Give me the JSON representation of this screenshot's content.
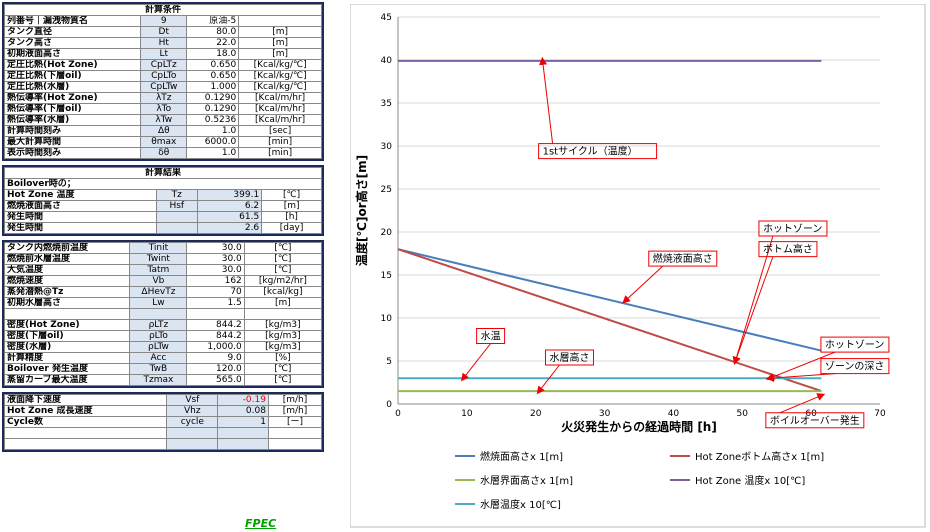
{
  "cond": {
    "header": "計算条件",
    "rows": [
      {
        "label": "列番号｜漏洩物質名",
        "sym": "9",
        "val": "原油-5",
        "unit": ""
      },
      {
        "label": "タンク直径",
        "sym": "Dt",
        "val": "80.0",
        "unit": "[m]"
      },
      {
        "label": "タンク高さ",
        "sym": "Ht",
        "val": "22.0",
        "unit": "[m]"
      },
      {
        "label": "初期液面高さ",
        "sym": "Lt",
        "val": "18.0",
        "unit": "[m]"
      },
      {
        "label": "定圧比熱(Hot Zone)",
        "sym": "CpLTz",
        "val": "0.650",
        "unit": "[Kcal/kg/℃]"
      },
      {
        "label": "定圧比熱(下層oil)",
        "sym": "CpLTo",
        "val": "0.650",
        "unit": "[Kcal/kg/℃]"
      },
      {
        "label": "定圧比熱(水層)",
        "sym": "CpLTw",
        "val": "1.000",
        "unit": "[Kcal/kg/℃]"
      },
      {
        "label": "熱伝導率(Hot Zone)",
        "sym": "λTz",
        "val": "0.1290",
        "unit": "[Kcal/m/hr]"
      },
      {
        "label": "熱伝導率(下層oil)",
        "sym": "λTo",
        "val": "0.1290",
        "unit": "[Kcal/m/hr]"
      },
      {
        "label": "熱伝導率(水層)",
        "sym": "λTw",
        "val": "0.5236",
        "unit": "[Kcal/m/hr]"
      },
      {
        "label": "計算時間刻み",
        "sym": "Δθ",
        "val": "1.0",
        "unit": "[sec]"
      },
      {
        "label": "最大計算時間",
        "sym": "θmax",
        "val": "6000.0",
        "unit": "[min]"
      },
      {
        "label": "表示時間刻み",
        "sym": "δθ",
        "val": "1.0",
        "unit": "[min]"
      }
    ]
  },
  "result": {
    "header": "計算結果",
    "sub": "Boilover時の；",
    "rows": [
      {
        "label": "Hot Zone 温度",
        "sym": "Tz",
        "val": "399.1",
        "unit": "[℃]"
      },
      {
        "label": "燃焼液面高さ",
        "sym": "Hsf",
        "val": "6.2",
        "unit": "[m]"
      },
      {
        "label": "発生時間",
        "sym": "",
        "val": "61.5",
        "unit": "[h]"
      },
      {
        "label": "発生時間",
        "sym": "",
        "val": "2.6",
        "unit": "[day]"
      }
    ]
  },
  "params": {
    "rows": [
      {
        "label": "タンク内燃焼前温度",
        "sym": "Tinit",
        "val": "30.0",
        "unit": "[℃]"
      },
      {
        "label": "燃焼前水層温度",
        "sym": "Twint",
        "val": "30.0",
        "unit": "[℃]"
      },
      {
        "label": "大気温度",
        "sym": "Tatm",
        "val": "30.0",
        "unit": "[℃]"
      },
      {
        "label": "燃焼速度",
        "sym": "Vb",
        "val": "162",
        "unit": "[kg/m2/hr]"
      },
      {
        "label": "蒸発潜熱@Tz",
        "sym": "ΔHevTz",
        "val": "70",
        "unit": "[kcal/kg]"
      },
      {
        "label": "初期水層高さ",
        "sym": "Lw",
        "val": "1.5",
        "unit": "[m]"
      },
      {
        "label": "",
        "sym": "",
        "val": "",
        "unit": ""
      },
      {
        "label": "密度(Hot Zone)",
        "sym": "ρLTz",
        "val": "844.2",
        "unit": "[kg/m3]"
      },
      {
        "label": "密度(下層oil)",
        "sym": "ρLTo",
        "val": "844.2",
        "unit": "[kg/m3]"
      },
      {
        "label": "密度(水層)",
        "sym": "ρLTw",
        "val": "1,000.0",
        "unit": "[kg/m3]"
      },
      {
        "label": "計算精度",
        "sym": "Acc",
        "val": "9.0",
        "unit": "[%]"
      },
      {
        "label": "Boilover 発生温度",
        "sym": "TwB",
        "val": "120.0",
        "unit": "[℃]"
      },
      {
        "label": "蒸留カーブ最大温度",
        "sym": "Tzmax",
        "val": "565.0",
        "unit": "[℃]"
      }
    ]
  },
  "speeds": {
    "rows": [
      {
        "label": "液面降下速度",
        "sym": "Vsf",
        "val": "-0.19",
        "unit": "[m/h]"
      },
      {
        "label": "Hot Zone 成長速度",
        "sym": "Vhz",
        "val": "0.08",
        "unit": "[m/h]"
      },
      {
        "label": "Cycle数",
        "sym": "cycle",
        "val": "1",
        "unit": "[ー]"
      },
      {
        "label": "",
        "sym": "",
        "val": "",
        "unit": ""
      },
      {
        "label": "",
        "sym": "",
        "val": "",
        "unit": ""
      }
    ]
  },
  "footer_logo": "FPEC",
  "chart_data": {
    "type": "line",
    "xlabel": "火災発生からの経過時間 [h]",
    "ylabel": "温度[℃]or高さ[m]",
    "xlim": [
      0,
      70
    ],
    "ylim": [
      0,
      45
    ],
    "xticks": [
      0,
      10,
      20,
      30,
      40,
      50,
      60,
      70
    ],
    "yticks": [
      0,
      5,
      10,
      15,
      20,
      25,
      30,
      35,
      40,
      45
    ],
    "grid": true,
    "legend_position": "bottom",
    "series": [
      {
        "name": "燃焼面高さx 1[m]",
        "color": "#4a7ebb",
        "x": [
          0,
          61.5
        ],
        "y": [
          18,
          6.2
        ]
      },
      {
        "name": "Hot Zoneボトム高さx 1[m]",
        "color": "#be4b48",
        "x": [
          0,
          61.5
        ],
        "y": [
          18,
          1.5
        ]
      },
      {
        "name": "水層界面高さx 1[m]",
        "color": "#98b954",
        "x": [
          0,
          61.5
        ],
        "y": [
          1.5,
          1.5
        ]
      },
      {
        "name": "Hot Zone 温度x 10[℃]",
        "color": "#7d60a0",
        "x": [
          0,
          61.5
        ],
        "y": [
          39.9,
          39.9
        ]
      },
      {
        "name": "水層温度x 10[℃]",
        "color": "#4bacc6",
        "x": [
          0,
          61.5
        ],
        "y": [
          3.0,
          3.0
        ]
      }
    ],
    "annotations": [
      {
        "text": "1stサイクル（温度）",
        "x": 21,
        "y": 29,
        "tx": 21,
        "ty": 39.9
      },
      {
        "text": "燃焼液面高さ",
        "x": 37,
        "y": 16.5,
        "tx": 33,
        "ty": 12
      },
      {
        "text": "ホットゾーン",
        "x": 53,
        "y": 20,
        "tx": 49,
        "ty": 5
      },
      {
        "text": "ボトム高さ",
        "x": 53,
        "y": 17.6,
        "tx": 49,
        "ty": 5
      },
      {
        "text": "水温",
        "x": 12,
        "y": 7.5,
        "tx": 9.5,
        "ty": 3
      },
      {
        "text": "水層高さ",
        "x": 22,
        "y": 5,
        "tx": 20.5,
        "ty": 1.5
      },
      {
        "text": "ホットゾーン",
        "x": 62,
        "y": 6.5,
        "tx": 54,
        "ty": 3
      },
      {
        "text": "ゾーンの深さ",
        "x": 62,
        "y": 4,
        "tx": 54,
        "ty": 3
      },
      {
        "text": "ボイルオーバー発生",
        "x": 54,
        "y": -2.3,
        "tx": 61.5,
        "ty": 1
      }
    ]
  }
}
